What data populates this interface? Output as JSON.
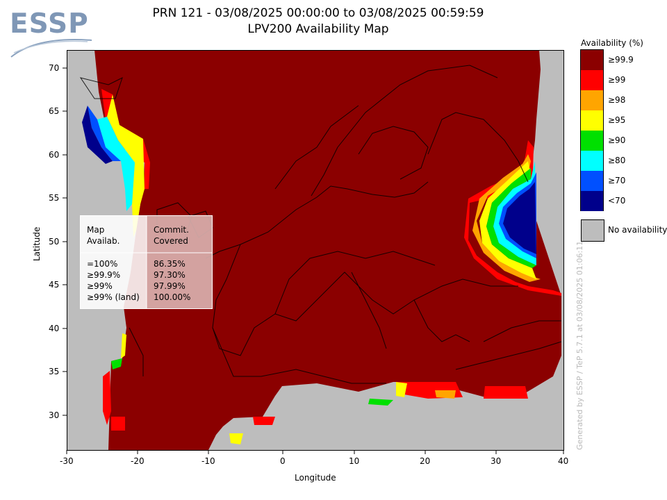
{
  "header": {
    "logo_text": "ESSP",
    "title_line1": "PRN 121 - 03/08/2025 00:00:00 to 03/08/2025 00:59:59",
    "title_line2": "LPV200 Availability Map"
  },
  "axes": {
    "xlabel": "Longitude",
    "ylabel": "Latitude",
    "x_ticks": [
      "-30",
      "-20",
      "-10",
      "0",
      "10",
      "20",
      "30",
      "40"
    ],
    "y_ticks": [
      "70",
      "65",
      "60",
      "55",
      "50",
      "45",
      "40",
      "35",
      "30"
    ],
    "x_range": [
      -30,
      40
    ],
    "y_range": [
      26,
      72
    ]
  },
  "legend": {
    "title": "Availability (%)",
    "items": [
      {
        "label": "≥99.9",
        "color": "#8b0000"
      },
      {
        "label": "≥99",
        "color": "#ff0000"
      },
      {
        "label": "≥98",
        "color": "#ffa500"
      },
      {
        "label": "≥95",
        "color": "#ffff00"
      },
      {
        "label": "≥90",
        "color": "#00e000"
      },
      {
        "label": "≥80",
        "color": "#00ffff"
      },
      {
        "label": "≥70",
        "color": "#0050ff"
      },
      {
        "label": "<70",
        "color": "#00008b"
      }
    ],
    "no_availability_label": "No availability",
    "no_availability_color": "#bdbdbd"
  },
  "stats_table": {
    "header_col1": [
      "Map",
      "Availab."
    ],
    "header_col2": [
      "Commit.",
      "Covered"
    ],
    "rows": [
      {
        "level": "=100%",
        "value": "86.35%"
      },
      {
        "level": "≥99.9%",
        "value": "97.30%"
      },
      {
        "level": "≥99%",
        "value": "97.99%"
      },
      {
        "level": "≥99% (land)",
        "value": "100.00%"
      }
    ]
  },
  "credit": "Generated by ESSP / TeP 5.7.1 at 03/08/2025 01:06:11"
}
